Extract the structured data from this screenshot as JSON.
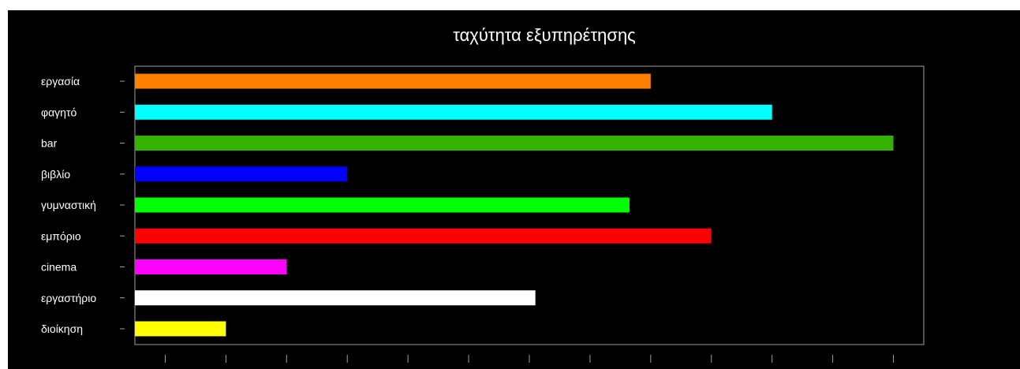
{
  "chart_data": {
    "type": "bar",
    "orientation": "horizontal",
    "title": "ταχύτητα εξυπηρέτησης",
    "xlabel": "",
    "ylabel": "",
    "categories": [
      "εργασία",
      "φαγητό",
      "bar",
      "βιβλίο",
      "γυμναστική",
      "εμπόριο",
      "cinema",
      "εργαστήριο",
      "διοίκηση"
    ],
    "values": [
      8.5,
      10.5,
      12.5,
      3.5,
      8.15,
      9.5,
      2.5,
      6.6,
      1.5
    ],
    "colors": [
      "#ff8000",
      "#00ffff",
      "#33b300",
      "#0000ff",
      "#00ff00",
      "#ff0000",
      "#ff00ff",
      "#ffffff",
      "#ffff00"
    ],
    "xlim": [
      0,
      13
    ],
    "x_ticks": [
      0.5,
      1.5,
      2.5,
      3.5,
      4.5,
      5.5,
      6.5,
      7.5,
      8.5,
      9.5,
      10.5,
      11.5,
      12.5
    ],
    "x_tick_labels_shown": false,
    "grid": false,
    "legend": "none",
    "background": "#000000",
    "foreground": "#ffffff"
  }
}
